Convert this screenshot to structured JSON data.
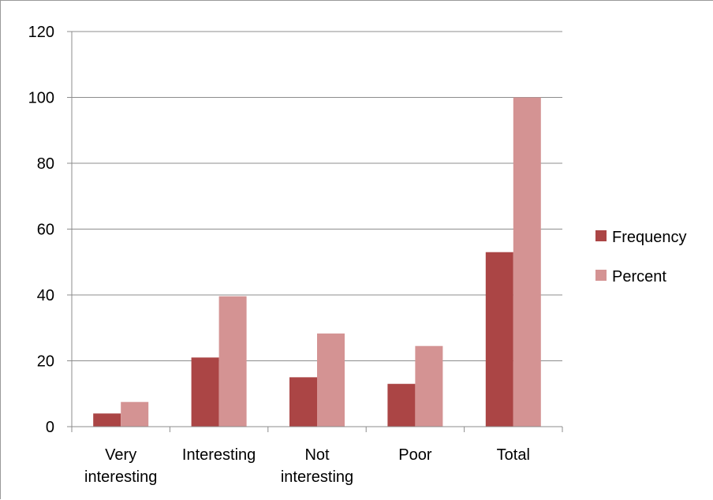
{
  "chart_data": {
    "type": "bar",
    "title": "",
    "xlabel": "",
    "ylabel": "",
    "categories": [
      [
        "Very",
        "interesting"
      ],
      [
        "Interesting"
      ],
      [
        "Not",
        "interesting"
      ],
      [
        "Poor"
      ],
      [
        "Total"
      ]
    ],
    "series": [
      {
        "name": "Frequency",
        "color": "#ab4545",
        "values": [
          4,
          21,
          15,
          13,
          53
        ]
      },
      {
        "name": "Percent",
        "color": "#d49393",
        "values": [
          7.5,
          39.6,
          28.3,
          24.5,
          100
        ]
      }
    ],
    "ylim": [
      0,
      120
    ],
    "yticks": [
      0,
      20,
      40,
      60,
      80,
      100,
      120
    ],
    "grid": true,
    "legend": "right"
  }
}
